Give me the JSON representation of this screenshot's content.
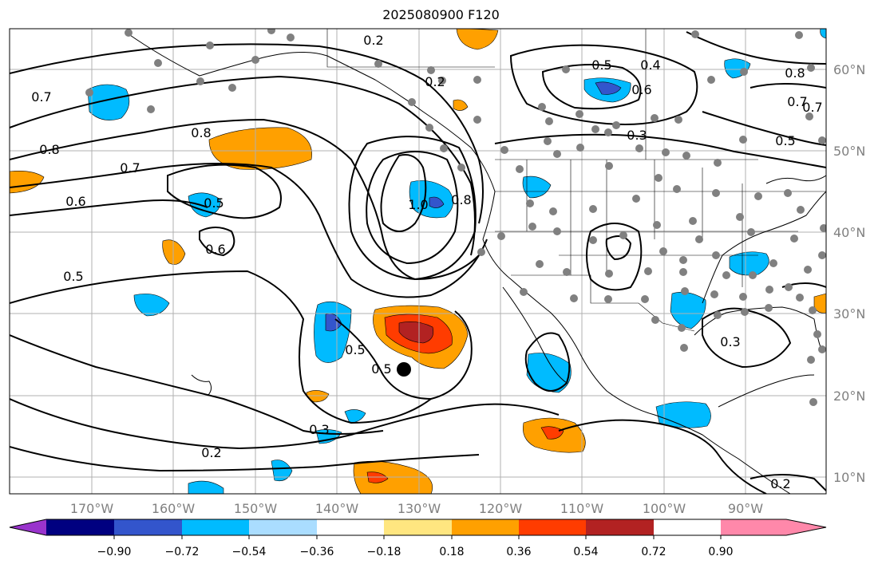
{
  "title": "2025080900 F120",
  "lon_ticks": [
    "170°W",
    "160°W",
    "150°W",
    "140°W",
    "130°W",
    "120°W",
    "110°W",
    "100°W",
    "90°W"
  ],
  "lat_ticks": [
    "60°N",
    "50°N",
    "40°N",
    "30°N",
    "20°N",
    "10°N"
  ],
  "colorbar": {
    "labels": [
      "−0.90",
      "−0.72",
      "−0.54",
      "−0.36",
      "−0.18",
      "0.18",
      "0.36",
      "0.54",
      "0.72",
      "0.90"
    ],
    "colors": [
      "#9933cc",
      "#000080",
      "#3355cc",
      "#00bbff",
      "#aaddff",
      "#ffffff",
      "#ffe680",
      "#ffa000",
      "#ff3c00",
      "#b22222",
      "#ff88aa"
    ]
  },
  "contour_labels": [
    "0.2",
    "0.5",
    "0.4",
    "0.6",
    "0.7",
    "0.8",
    "0.2",
    "0.7",
    "0.3",
    "0.7",
    "0.5",
    "0.8",
    "0.8",
    "0.7",
    "0.6",
    "0.5",
    "0.6",
    "1.0",
    "0.8",
    "0.5",
    "0.5",
    "0.5",
    "0.3",
    "0.2",
    "0.3",
    "0.2"
  ],
  "colors": {
    "contour": "#000000",
    "station": "#808080",
    "grid": "#b0b0b0",
    "marker": "#000000"
  }
}
